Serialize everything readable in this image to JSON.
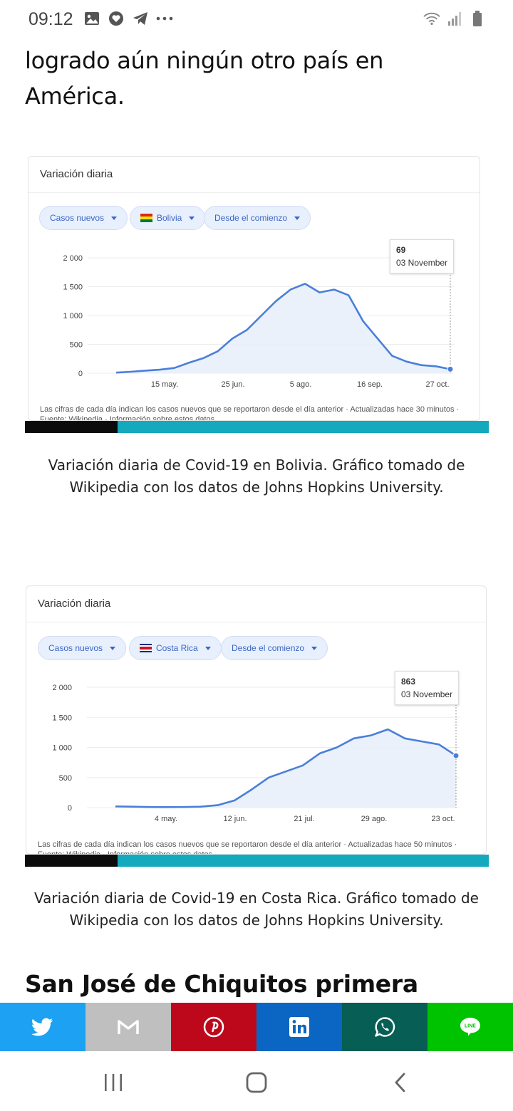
{
  "status_bar": {
    "time": "09:12",
    "left_icons": [
      "gallery-icon",
      "heart-chat-icon",
      "telegram-icon",
      "more-icon"
    ],
    "right_icons": [
      "wifi-icon",
      "signal-icon",
      "battery-icon"
    ]
  },
  "article": {
    "intro_text": "logrado aún ningún otro país en América.",
    "section_heading": "San José de Chiquitos primera"
  },
  "charts": [
    {
      "card_title": "Variación diaria",
      "chips": {
        "metric": "Casos nuevos",
        "country": "Bolivia",
        "range": "Desde el comienzo"
      },
      "tooltip": {
        "value": "69",
        "date": "03 November"
      },
      "footnote": "Las cifras de cada día indican los casos nuevos que se reportaron desde el día anterior · Actualizadas hace 30 minutos · Fuente: Wikipedia · Información sobre estos datos",
      "caption": "Variación diaria de Covid-19 en Bolivia. Gráfico tomado de Wikipedia con los datos de Johns Hopkins University.",
      "colors": {
        "line": "#4a7fd9",
        "area": "#e8effb",
        "flag_top": "#d52b1e",
        "flag_mid": "#f9e300",
        "flag_bottom": "#007934"
      },
      "chart_data": {
        "type": "line",
        "title": "Variación diaria",
        "series_name": "Casos nuevos",
        "ylim": [
          0,
          2000
        ],
        "yticks": [
          "2 000",
          "1 500",
          "1 000",
          "500",
          "0"
        ],
        "yticks_values": [
          2000,
          1500,
          1000,
          500,
          0
        ],
        "xticks": [
          "15 may.",
          "25 jun.",
          "5 ago.",
          "16 sep.",
          "27 oct."
        ],
        "x": [
          "03-15",
          "03-25",
          "04-05",
          "04-15",
          "04-25",
          "05-05",
          "05-15",
          "05-25",
          "06-05",
          "06-15",
          "06-25",
          "07-05",
          "07-15",
          "07-25",
          "08-05",
          "08-15",
          "08-25",
          "09-05",
          "09-15",
          "09-25",
          "10-05",
          "10-15",
          "10-25",
          "11-03"
        ],
        "values": [
          10,
          25,
          45,
          60,
          90,
          180,
          260,
          380,
          600,
          750,
          1000,
          1250,
          1450,
          1550,
          1400,
          1450,
          1350,
          900,
          600,
          300,
          200,
          140,
          120,
          69
        ],
        "grid": true,
        "legend": "none"
      }
    },
    {
      "card_title": "Variación diaria",
      "chips": {
        "metric": "Casos nuevos",
        "country": "Costa Rica",
        "range": "Desde el comienzo"
      },
      "tooltip": {
        "value": "863",
        "date": "03 November"
      },
      "footnote": "Las cifras de cada día indican los casos nuevos que se reportaron desde el día anterior · Actualizadas hace 50 minutos · Fuente: Wikipedia · Información sobre estos datos",
      "caption": "Variación diaria de Covid-19 en Costa Rica. Gráfico tomado de Wikipedia con los datos de Johns Hopkins University.",
      "colors": {
        "line": "#4a7fd9",
        "area": "#e8effb",
        "flag_top": "#002b7f",
        "flag_mid": "#ce1126",
        "flag_bottom": "#ffffff"
      },
      "chart_data": {
        "type": "line",
        "title": "Variación diaria",
        "series_name": "Casos nuevos",
        "ylim": [
          0,
          2000
        ],
        "yticks": [
          "2 000",
          "1 500",
          "1 000",
          "500",
          "0"
        ],
        "yticks_values": [
          2000,
          1500,
          1000,
          500,
          0
        ],
        "xticks": [
          "4 may.",
          "12 jun.",
          "21 jul.",
          "29 ago.",
          "23 oct."
        ],
        "x": [
          "03-06",
          "03-20",
          "04-05",
          "04-20",
          "05-04",
          "05-20",
          "06-05",
          "06-20",
          "07-05",
          "07-15",
          "07-25",
          "08-05",
          "08-15",
          "08-25",
          "09-05",
          "09-15",
          "09-25",
          "10-05",
          "10-15",
          "10-25",
          "11-03"
        ],
        "values": [
          20,
          15,
          10,
          8,
          10,
          15,
          40,
          120,
          300,
          500,
          600,
          700,
          900,
          1000,
          1150,
          1200,
          1300,
          1150,
          1100,
          1050,
          863
        ],
        "grid": true,
        "legend": "none"
      }
    }
  ],
  "share_bar": {
    "buttons": [
      {
        "name": "twitter",
        "icon": "twitter-icon",
        "color": "#1da1f2"
      },
      {
        "name": "gmail",
        "icon": "gmail-icon",
        "color": "#bfbfbf"
      },
      {
        "name": "pinterest",
        "icon": "pinterest-icon",
        "color": "#bd081c"
      },
      {
        "name": "linkedin",
        "icon": "linkedin-icon",
        "color": "#0a66c2"
      },
      {
        "name": "whatsapp",
        "icon": "whatsapp-icon",
        "color": "#075e54"
      },
      {
        "name": "line",
        "icon": "line-icon",
        "color": "#00c300"
      }
    ]
  },
  "nav_bar": {
    "buttons": [
      "recent-apps-icon",
      "home-icon",
      "back-icon"
    ]
  }
}
